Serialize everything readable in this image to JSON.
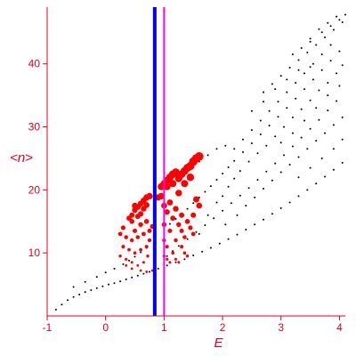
{
  "chart_data": {
    "type": "scatter",
    "title": "",
    "xlabel": "E",
    "ylabel": "<n>",
    "xlim": [
      -1,
      4.1
    ],
    "ylim": [
      0,
      49
    ],
    "xticks": [
      -1,
      0,
      1,
      2,
      3,
      4
    ],
    "yticks": [
      10,
      20,
      30,
      40
    ],
    "grid": false,
    "legend": "none",
    "colors": {
      "axes": "#e8001c",
      "dots": "#000000",
      "highlight": "#ff0000",
      "line_blue": "#0000ff",
      "line_magenta": "#ff00ff"
    },
    "vlines": [
      {
        "x": 0.84,
        "color": "#0000ff"
      },
      {
        "x": 1.0,
        "color": "#ff00ff"
      }
    ],
    "series": [
      {
        "points": [
          [
            -0.85,
            1.0
          ],
          [
            -0.75,
            1.8
          ],
          [
            -0.65,
            2.5
          ],
          [
            -0.55,
            3.0
          ],
          [
            -0.45,
            3.4
          ],
          [
            -0.35,
            3.8
          ],
          [
            -0.25,
            4.1
          ],
          [
            -0.15,
            4.4
          ],
          [
            -0.05,
            4.7
          ],
          [
            0.05,
            5.0
          ],
          [
            0.15,
            5.2
          ],
          [
            0.25,
            5.5
          ],
          [
            0.35,
            5.8
          ],
          [
            0.45,
            6.1
          ],
          [
            0.55,
            6.4
          ],
          [
            0.65,
            6.7
          ],
          [
            0.75,
            7.0
          ],
          [
            0.9,
            7.5
          ],
          [
            1.05,
            8.0
          ],
          [
            1.2,
            8.5
          ],
          [
            1.35,
            9.0
          ],
          [
            1.5,
            9.6
          ],
          [
            1.65,
            10.2
          ],
          [
            1.8,
            10.8
          ],
          [
            1.95,
            11.5
          ],
          [
            2.1,
            12.2
          ],
          [
            2.25,
            12.9
          ],
          [
            2.4,
            13.7
          ],
          [
            2.55,
            14.5
          ],
          [
            2.7,
            15.3
          ],
          [
            2.85,
            16.2
          ],
          [
            3.0,
            17.1
          ],
          [
            3.15,
            18.0
          ],
          [
            3.3,
            19.0
          ],
          [
            3.45,
            20.0
          ],
          [
            3.6,
            21.0
          ],
          [
            3.75,
            22.1
          ],
          [
            3.9,
            23.2
          ],
          [
            4.05,
            24.3
          ],
          [
            -0.55,
            4.6
          ],
          [
            -0.35,
            5.4
          ],
          [
            -0.15,
            6.2
          ],
          [
            0.0,
            6.9
          ],
          [
            0.15,
            7.5
          ],
          [
            0.3,
            8.2
          ],
          [
            0.4,
            8.8
          ],
          [
            0.5,
            9.4
          ],
          [
            0.6,
            10.1
          ],
          [
            0.7,
            10.8
          ],
          [
            1.1,
            14.6
          ],
          [
            1.2,
            15.4
          ],
          [
            1.3,
            16.2
          ],
          [
            1.4,
            17.0
          ],
          [
            1.5,
            17.9
          ],
          [
            1.6,
            18.8
          ],
          [
            1.7,
            19.7
          ],
          [
            1.8,
            20.6
          ],
          [
            1.9,
            21.6
          ],
          [
            2.0,
            22.6
          ],
          [
            2.1,
            23.6
          ],
          [
            2.2,
            24.6
          ],
          [
            2.35,
            26.0
          ],
          [
            2.5,
            27.4
          ],
          [
            2.65,
            28.8
          ],
          [
            2.8,
            30.2
          ],
          [
            2.95,
            31.6
          ],
          [
            3.1,
            33.0
          ],
          [
            3.25,
            34.5
          ],
          [
            3.4,
            36.0
          ],
          [
            3.55,
            37.5
          ],
          [
            3.7,
            39.0
          ],
          [
            3.85,
            40.5
          ],
          [
            4.0,
            42.0
          ],
          [
            1.05,
            9.5
          ],
          [
            1.15,
            10.3
          ],
          [
            1.25,
            11.1
          ],
          [
            1.4,
            12.2
          ],
          [
            1.55,
            13.3
          ],
          [
            1.7,
            14.4
          ],
          [
            1.85,
            15.5
          ],
          [
            2.0,
            16.7
          ],
          [
            2.15,
            17.9
          ],
          [
            2.3,
            19.1
          ],
          [
            2.45,
            20.3
          ],
          [
            2.6,
            21.6
          ],
          [
            2.75,
            22.9
          ],
          [
            2.9,
            24.2
          ],
          [
            3.05,
            25.5
          ],
          [
            3.2,
            26.9
          ],
          [
            3.35,
            28.3
          ],
          [
            3.5,
            29.7
          ],
          [
            3.65,
            31.1
          ],
          [
            3.8,
            32.6
          ],
          [
            3.95,
            34.1
          ],
          [
            2.7,
            35.5
          ],
          [
            2.85,
            36.8
          ],
          [
            3.0,
            38.1
          ],
          [
            3.15,
            39.4
          ],
          [
            3.3,
            40.6
          ],
          [
            3.45,
            41.8
          ],
          [
            3.6,
            43.0
          ],
          [
            3.75,
            44.2
          ],
          [
            3.9,
            45.4
          ],
          [
            4.05,
            46.6
          ],
          [
            4.1,
            47.8
          ],
          [
            4.0,
            47.0
          ],
          [
            3.5,
            43.5
          ],
          [
            3.7,
            45.0
          ],
          [
            3.85,
            46.0
          ],
          [
            2.0,
            19.0
          ],
          [
            2.1,
            20.5
          ],
          [
            2.2,
            21.8
          ],
          [
            2.3,
            23.0
          ],
          [
            2.45,
            24.5
          ],
          [
            2.6,
            25.8
          ],
          [
            2.75,
            27.0
          ],
          [
            2.9,
            28.5
          ],
          [
            3.05,
            30.0
          ],
          [
            3.2,
            31.5
          ],
          [
            3.35,
            32.8
          ],
          [
            3.5,
            34.2
          ],
          [
            3.65,
            35.8
          ],
          [
            3.8,
            37.0
          ],
          [
            3.95,
            38.5
          ],
          [
            4.05,
            39.8
          ],
          [
            1.6,
            13.0
          ],
          [
            1.75,
            16.0
          ],
          [
            1.9,
            18.0
          ],
          [
            2.05,
            14.5
          ],
          [
            2.25,
            16.0
          ],
          [
            2.4,
            17.5
          ],
          [
            2.55,
            18.8
          ],
          [
            2.7,
            20.2
          ],
          [
            2.85,
            21.5
          ],
          [
            3.0,
            22.8
          ],
          [
            3.15,
            24.0
          ],
          [
            3.3,
            25.2
          ],
          [
            3.45,
            26.5
          ],
          [
            3.6,
            27.8
          ],
          [
            3.75,
            29.0
          ],
          [
            3.9,
            30.3
          ],
          [
            4.05,
            31.5
          ],
          [
            2.2,
            26.5
          ],
          [
            2.35,
            28.0
          ],
          [
            2.5,
            29.5
          ],
          [
            2.65,
            31.0
          ],
          [
            2.8,
            32.5
          ],
          [
            2.95,
            34.0
          ],
          [
            3.1,
            35.5
          ],
          [
            3.25,
            37.0
          ],
          [
            3.4,
            38.5
          ],
          [
            3.55,
            40.0
          ],
          [
            3.7,
            41.5
          ],
          [
            3.85,
            43.0
          ],
          [
            3.2,
            41.5
          ],
          [
            3.35,
            42.5
          ],
          [
            3.5,
            44.0
          ],
          [
            3.65,
            45.5
          ],
          [
            3.8,
            46.5
          ],
          [
            3.95,
            47.5
          ],
          [
            3.0,
            27.5
          ],
          [
            3.2,
            29.0
          ],
          [
            3.4,
            31.0
          ],
          [
            3.6,
            33.0
          ],
          [
            3.8,
            35.0
          ],
          [
            4.0,
            36.5
          ],
          [
            3.3,
            22.0
          ],
          [
            3.5,
            23.5
          ],
          [
            3.7,
            25.0
          ],
          [
            3.9,
            26.5
          ],
          [
            4.05,
            28.0
          ],
          [
            2.5,
            32.5
          ],
          [
            2.7,
            34.0
          ],
          [
            2.9,
            36.0
          ],
          [
            3.1,
            37.5
          ],
          [
            3.3,
            39.0
          ],
          [
            3.5,
            39.5
          ],
          [
            1.3,
            22.0
          ],
          [
            1.45,
            23.5
          ],
          [
            1.6,
            24.5
          ],
          [
            1.75,
            25.5
          ],
          [
            1.9,
            26.5
          ],
          [
            2.05,
            27.0
          ]
        ]
      },
      {
        "points": [
          [
            0.4,
            15.5
          ],
          [
            0.45,
            16.0
          ],
          [
            0.5,
            16.8
          ],
          [
            0.55,
            17.3
          ],
          [
            0.6,
            17.8
          ],
          [
            0.65,
            18.3
          ],
          [
            0.7,
            18.8
          ],
          [
            0.75,
            19.0
          ],
          [
            0.5,
            17.5
          ],
          [
            0.6,
            16.2
          ],
          [
            0.65,
            17.0
          ],
          [
            0.7,
            17.6
          ],
          [
            0.45,
            15.0
          ],
          [
            0.55,
            15.8
          ],
          [
            0.9,
            18.8
          ],
          [
            0.95,
            19.0
          ],
          [
            0.95,
            20.5
          ],
          [
            1.0,
            21.0
          ],
          [
            1.05,
            21.5
          ],
          [
            1.1,
            22.0
          ],
          [
            1.15,
            22.5
          ],
          [
            1.2,
            22.8
          ],
          [
            1.05,
            20.5
          ],
          [
            1.15,
            21.0
          ],
          [
            1.25,
            21.8
          ],
          [
            1.3,
            22.5
          ],
          [
            1.35,
            23.0
          ],
          [
            1.4,
            23.5
          ],
          [
            1.45,
            23.8
          ],
          [
            1.5,
            24.5
          ],
          [
            1.55,
            25.0
          ],
          [
            1.6,
            25.3
          ],
          [
            1.45,
            22.0
          ],
          [
            1.35,
            21.0
          ],
          [
            1.25,
            19.5
          ],
          [
            0.5,
            13.5
          ],
          [
            0.6,
            14.5
          ],
          [
            0.7,
            15.0
          ],
          [
            0.3,
            14.0
          ],
          [
            0.25,
            13.0
          ],
          [
            0.35,
            12.5
          ],
          [
            0.45,
            12.0
          ],
          [
            0.55,
            12.5
          ],
          [
            0.65,
            13.0
          ],
          [
            0.75,
            13.5
          ],
          [
            0.8,
            14.2
          ],
          [
            0.3,
            11.0
          ],
          [
            0.4,
            10.5
          ],
          [
            0.5,
            10.0
          ],
          [
            0.6,
            10.5
          ],
          [
            0.7,
            11.0
          ],
          [
            0.75,
            12.0
          ],
          [
            0.25,
            9.5
          ],
          [
            0.35,
            9.0
          ],
          [
            0.45,
            8.5
          ],
          [
            0.55,
            8.0
          ],
          [
            0.65,
            8.5
          ],
          [
            0.72,
            9.5
          ],
          [
            1.0,
            17.5
          ],
          [
            1.05,
            16.5
          ],
          [
            1.15,
            15.5
          ],
          [
            1.25,
            14.5
          ],
          [
            1.3,
            13.5
          ],
          [
            1.35,
            12.5
          ],
          [
            1.1,
            18.0
          ],
          [
            1.2,
            17.0
          ],
          [
            1.3,
            16.0
          ],
          [
            1.4,
            15.0
          ],
          [
            1.45,
            14.0
          ],
          [
            1.5,
            13.0
          ],
          [
            1.0,
            14.5
          ],
          [
            1.1,
            13.5
          ],
          [
            1.2,
            12.0
          ],
          [
            1.3,
            11.0
          ],
          [
            1.35,
            10.0
          ],
          [
            1.4,
            9.5
          ],
          [
            1.0,
            12.0
          ],
          [
            1.05,
            11.0
          ],
          [
            1.15,
            10.0
          ],
          [
            1.2,
            9.0
          ],
          [
            1.25,
            8.5
          ],
          [
            1.0,
            9.5
          ],
          [
            1.05,
            9.0
          ],
          [
            1.1,
            8.5
          ],
          [
            1.5,
            16.0
          ],
          [
            1.6,
            17.5
          ],
          [
            1.55,
            18.5
          ],
          [
            0.35,
            8.0
          ],
          [
            0.45,
            7.5
          ],
          [
            0.6,
            7.2
          ],
          [
            0.7,
            7.0
          ],
          [
            0.8,
            7.2
          ],
          [
            0.85,
            7.5
          ]
        ]
      }
    ]
  }
}
